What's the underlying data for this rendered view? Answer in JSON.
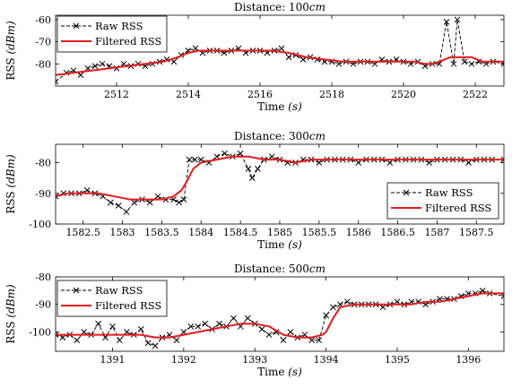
{
  "chart_data": [
    {
      "type": "line",
      "title": "Distance: 100cm",
      "title_prefix": "Distance: 100",
      "title_unit": "cm",
      "xlabel": "Time (s)",
      "xlabel_text": "Time ",
      "xlabel_unit": "(s)",
      "ylabel": "RSS (dBm)",
      "ylabel_text": "RSS ",
      "ylabel_unit": "(dBm)",
      "xlim": [
        2510.3,
        2522.8
      ],
      "ylim": [
        -90,
        -58
      ],
      "xticks": [
        2512,
        2514,
        2516,
        2518,
        2520,
        2522
      ],
      "yticks": [
        -80,
        -70,
        -60
      ],
      "legend": "top-left",
      "series": [
        {
          "name": "Raw RSS",
          "style": "dashed-x",
          "color": "#000000",
          "x": [
            2510.3,
            2510.6,
            2510.8,
            2511.0,
            2511.2,
            2511.4,
            2511.6,
            2511.8,
            2512.0,
            2512.2,
            2512.4,
            2512.6,
            2512.8,
            2513.0,
            2513.2,
            2513.4,
            2513.6,
            2513.8,
            2514.0,
            2514.2,
            2514.4,
            2514.6,
            2514.8,
            2515.0,
            2515.2,
            2515.4,
            2515.6,
            2515.8,
            2516.0,
            2516.2,
            2516.4,
            2516.6,
            2516.8,
            2517.0,
            2517.2,
            2517.4,
            2517.6,
            2517.8,
            2518.0,
            2518.2,
            2518.4,
            2518.6,
            2518.8,
            2519.0,
            2519.2,
            2519.4,
            2519.6,
            2519.8,
            2520.0,
            2520.2,
            2520.4,
            2520.6,
            2520.8,
            2521.0,
            2521.2,
            2521.4,
            2521.5,
            2521.7,
            2521.9,
            2522.1,
            2522.3,
            2522.5,
            2522.8
          ],
          "y": [
            -88,
            -84,
            -83,
            -85,
            -82,
            -81,
            -80,
            -81,
            -82,
            -80,
            -81,
            -80,
            -81,
            -80,
            -79,
            -78,
            -79,
            -76,
            -74,
            -73,
            -75,
            -74,
            -74,
            -75,
            -74,
            -73,
            -75,
            -74,
            -74,
            -75,
            -74,
            -73,
            -77,
            -76,
            -78,
            -77,
            -78,
            -79,
            -79,
            -80,
            -79,
            -80,
            -79,
            -79,
            -80,
            -78,
            -79,
            -78,
            -79,
            -80,
            -79,
            -81,
            -80,
            -80,
            -61,
            -80,
            -60,
            -79,
            -80,
            -79,
            -80,
            -79,
            -80
          ]
        },
        {
          "name": "Filtered RSS",
          "style": "solid",
          "color": "#e41a1c",
          "x": [
            2510.3,
            2510.8,
            2511.3,
            2511.8,
            2512.3,
            2512.8,
            2513.3,
            2513.7,
            2514.0,
            2514.3,
            2514.8,
            2515.3,
            2515.8,
            2516.3,
            2516.8,
            2517.3,
            2517.8,
            2518.3,
            2518.8,
            2519.3,
            2519.8,
            2520.3,
            2520.6,
            2520.8,
            2521.0,
            2521.3,
            2521.6,
            2521.9,
            2522.2,
            2522.5,
            2522.8
          ],
          "y": [
            -85,
            -84,
            -83,
            -82,
            -81,
            -80,
            -79,
            -77,
            -75,
            -74,
            -74,
            -74,
            -74,
            -74,
            -75,
            -77,
            -78,
            -79,
            -79,
            -79,
            -79,
            -79,
            -80,
            -80,
            -79,
            -77,
            -77,
            -77,
            -79,
            -79,
            -79
          ]
        }
      ]
    },
    {
      "type": "line",
      "title": "Distance: 300cm",
      "title_prefix": "Distance: 300",
      "title_unit": "cm",
      "xlabel": "Time (s)",
      "xlabel_text": "Time ",
      "xlabel_unit": "(s)",
      "ylabel": "RSS (dBm)",
      "ylabel_text": "RSS ",
      "ylabel_unit": "(dBm)",
      "xlim": [
        1582.15,
        1587.85
      ],
      "ylim": [
        -100,
        -74
      ],
      "xticks": [
        1582.5,
        1583,
        1583.5,
        1584,
        1584.5,
        1585,
        1585.5,
        1586,
        1586.5,
        1587,
        1587.5
      ],
      "yticks": [
        -100,
        -90,
        -80
      ],
      "legend": "bottom-right",
      "series": [
        {
          "name": "Raw RSS",
          "style": "dashed-x",
          "color": "#000000",
          "x": [
            1582.15,
            1582.25,
            1582.35,
            1582.45,
            1582.55,
            1582.65,
            1582.75,
            1582.85,
            1582.95,
            1583.05,
            1583.15,
            1583.25,
            1583.35,
            1583.45,
            1583.55,
            1583.65,
            1583.72,
            1583.78,
            1583.85,
            1583.92,
            1584.0,
            1584.1,
            1584.2,
            1584.3,
            1584.4,
            1584.5,
            1584.6,
            1584.65,
            1584.72,
            1584.8,
            1584.9,
            1585.0,
            1585.1,
            1585.2,
            1585.3,
            1585.4,
            1585.5,
            1585.6,
            1585.7,
            1585.8,
            1585.9,
            1586.0,
            1586.1,
            1586.2,
            1586.3,
            1586.4,
            1586.5,
            1586.6,
            1586.7,
            1586.8,
            1586.9,
            1587.0,
            1587.1,
            1587.2,
            1587.3,
            1587.4,
            1587.5,
            1587.6,
            1587.7,
            1587.85
          ],
          "y": [
            -91,
            -90,
            -90,
            -90,
            -89,
            -90,
            -91,
            -93,
            -94,
            -96,
            -93,
            -92,
            -93,
            -91,
            -92,
            -92,
            -93,
            -92,
            -79,
            -79,
            -79,
            -80,
            -78,
            -77,
            -78,
            -77,
            -82,
            -85,
            -82,
            -79,
            -78,
            -79,
            -80,
            -80,
            -79,
            -79,
            -80,
            -79,
            -79,
            -79,
            -79,
            -80,
            -79,
            -79,
            -79,
            -80,
            -79,
            -79,
            -79,
            -79,
            -80,
            -79,
            -79,
            -79,
            -79,
            -80,
            -79,
            -79,
            -79,
            -79
          ]
        },
        {
          "name": "Filtered RSS",
          "style": "solid",
          "color": "#e41a1c",
          "x": [
            1582.15,
            1582.3,
            1582.5,
            1582.7,
            1582.9,
            1583.1,
            1583.3,
            1583.5,
            1583.65,
            1583.75,
            1583.82,
            1583.9,
            1584.0,
            1584.2,
            1584.4,
            1584.6,
            1584.8,
            1585.0,
            1585.2,
            1585.4,
            1585.6,
            1585.8,
            1586.2,
            1586.6,
            1587.0,
            1587.4,
            1587.85
          ],
          "y": [
            -91,
            -90,
            -90,
            -90,
            -91,
            -92,
            -92,
            -92,
            -91,
            -89,
            -86,
            -82,
            -80,
            -79,
            -78,
            -78,
            -79,
            -79,
            -80,
            -79,
            -79,
            -79,
            -79,
            -79,
            -79,
            -79,
            -79
          ]
        }
      ]
    },
    {
      "type": "line",
      "title": "Distance: 500cm",
      "title_prefix": "Distance: 500",
      "title_unit": "cm",
      "xlabel": "Time (s)",
      "xlabel_text": "Time ",
      "xlabel_unit": "(s)",
      "ylabel": "RSS (dBm)",
      "ylabel_text": "RSS ",
      "ylabel_unit": "(dBm)",
      "xlim": [
        1390.2,
        1396.5
      ],
      "ylim": [
        -107,
        -80
      ],
      "xticks": [
        1391,
        1392,
        1393,
        1394,
        1395,
        1396
      ],
      "yticks": [
        -100,
        -90,
        -80
      ],
      "legend": "top-left",
      "series": [
        {
          "name": "Raw RSS",
          "style": "dashed-x",
          "color": "#000000",
          "x": [
            1390.2,
            1390.3,
            1390.4,
            1390.5,
            1390.6,
            1390.7,
            1390.8,
            1390.9,
            1391.0,
            1391.1,
            1391.2,
            1391.3,
            1391.4,
            1391.5,
            1391.6,
            1391.7,
            1391.8,
            1391.9,
            1392.0,
            1392.1,
            1392.2,
            1392.3,
            1392.4,
            1392.5,
            1392.6,
            1392.7,
            1392.8,
            1392.9,
            1393.0,
            1393.1,
            1393.2,
            1393.3,
            1393.4,
            1393.5,
            1393.6,
            1393.7,
            1393.8,
            1393.9,
            1394.0,
            1394.1,
            1394.2,
            1394.3,
            1394.4,
            1394.5,
            1394.6,
            1394.7,
            1394.8,
            1394.9,
            1395.0,
            1395.1,
            1395.2,
            1395.3,
            1395.4,
            1395.5,
            1395.6,
            1395.7,
            1395.8,
            1395.9,
            1396.0,
            1396.1,
            1396.2,
            1396.3,
            1396.5
          ],
          "y": [
            -101,
            -102,
            -101,
            -103,
            -100,
            -101,
            -97,
            -102,
            -98,
            -103,
            -100,
            -101,
            -99,
            -104,
            -105,
            -102,
            -101,
            -103,
            -100,
            -98,
            -98,
            -97,
            -99,
            -97,
            -98,
            -95,
            -98,
            -95,
            -97,
            -99,
            -101,
            -100,
            -103,
            -100,
            -102,
            -101,
            -103,
            -103,
            -94,
            -91,
            -90,
            -89,
            -90,
            -90,
            -90,
            -90,
            -91,
            -90,
            -89,
            -90,
            -89,
            -89,
            -90,
            -89,
            -88,
            -88,
            -88,
            -87,
            -86,
            -86,
            -85,
            -86,
            -87
          ]
        },
        {
          "name": "Filtered RSS",
          "style": "solid",
          "color": "#e41a1c",
          "x": [
            1390.2,
            1390.4,
            1390.6,
            1390.8,
            1391.0,
            1391.2,
            1391.4,
            1391.6,
            1391.8,
            1392.0,
            1392.2,
            1392.4,
            1392.6,
            1392.8,
            1393.0,
            1393.2,
            1393.4,
            1393.6,
            1393.8,
            1393.95,
            1394.0,
            1394.1,
            1394.2,
            1394.4,
            1394.6,
            1394.8,
            1395.0,
            1395.2,
            1395.4,
            1395.6,
            1395.8,
            1396.0,
            1396.2,
            1396.5
          ],
          "y": [
            -101,
            -101,
            -101,
            -101,
            -101,
            -101,
            -101,
            -102,
            -102,
            -101,
            -100,
            -99,
            -98,
            -97,
            -97,
            -98,
            -101,
            -102,
            -102,
            -101,
            -100,
            -95,
            -91,
            -90,
            -90,
            -90,
            -90,
            -90,
            -89,
            -89,
            -88,
            -87,
            -86,
            -86
          ]
        }
      ]
    }
  ]
}
